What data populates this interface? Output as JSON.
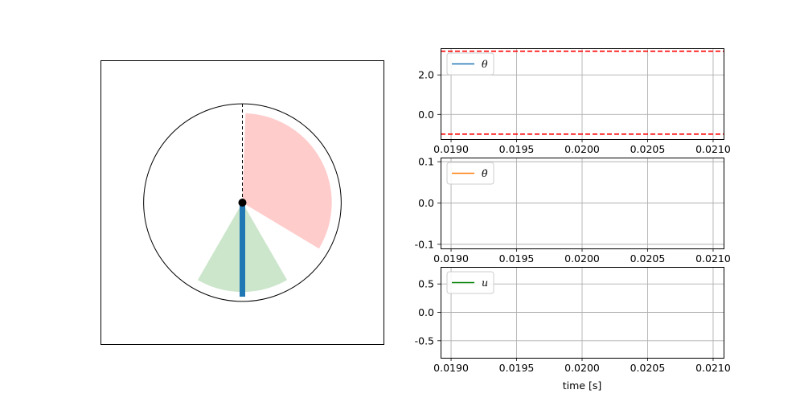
{
  "colors": {
    "theta": "#1f77b4",
    "theta_dot": "#ff7f0e",
    "u": "#008000",
    "limit_line": "#ff0000",
    "red_sector": "#ffcccc",
    "green_sector": "#cce6cc",
    "pendulum_rod": "#1f77b4",
    "pivot": "#000000",
    "grid": "#b0b0b0"
  },
  "pendulum": {
    "xlim": [
      -1.5,
      1.5
    ],
    "ylim": [
      -1.5,
      1.5
    ],
    "circle_radius": 1.05,
    "rod_length": 1.0,
    "rod_angle_deg": 0,
    "red_sector_deg": [
      330,
      360
    ],
    "green_sector_deg": [
      -30,
      30
    ],
    "ticks": false
  },
  "chart_data": [
    {
      "type": "line",
      "x": [],
      "series": [
        {
          "name": "θ",
          "values": []
        }
      ],
      "legend_label": "θ",
      "legend_location": "upper-left",
      "xlim": [
        0.01892,
        0.02108
      ],
      "ylim": [
        -1.25,
        3.35
      ],
      "hlines": [
        -1.0,
        3.2
      ],
      "xticks": [
        0.019,
        0.0195,
        0.02,
        0.0205,
        0.021
      ],
      "xtick_labels": [
        "0.0190",
        "0.0195",
        "0.0200",
        "0.0205",
        "0.0210"
      ],
      "yticks": [
        2.0,
        0.0
      ],
      "ytick_labels": [
        "2.0",
        "0.0"
      ],
      "grid": true,
      "xlabel": ""
    },
    {
      "type": "line",
      "x": [],
      "series": [
        {
          "name": "θ̇",
          "values": []
        }
      ],
      "legend_label": "θ̇",
      "legend_location": "upper-left",
      "xlim": [
        0.01892,
        0.02108
      ],
      "ylim": [
        -0.11,
        0.11
      ],
      "xticks": [
        0.019,
        0.0195,
        0.02,
        0.0205,
        0.021
      ],
      "xtick_labels": [
        "0.0190",
        "0.0195",
        "0.0200",
        "0.0205",
        "0.0210"
      ],
      "yticks": [
        0.1,
        0.0,
        -0.1
      ],
      "ytick_labels": [
        "0.1",
        "0.0",
        "-0.1"
      ],
      "grid": true,
      "xlabel": ""
    },
    {
      "type": "line",
      "x": [],
      "series": [
        {
          "name": "u",
          "values": []
        }
      ],
      "legend_label": "u",
      "legend_location": "upper-left",
      "xlim": [
        0.01892,
        0.02108
      ],
      "ylim": [
        -0.8,
        0.8
      ],
      "xticks": [
        0.019,
        0.0195,
        0.02,
        0.0205,
        0.021
      ],
      "xtick_labels": [
        "0.0190",
        "0.0195",
        "0.0200",
        "0.0205",
        "0.0210"
      ],
      "yticks": [
        0.5,
        0.0,
        -0.5
      ],
      "ytick_labels": [
        "0.5",
        "0.0",
        "-0.5"
      ],
      "grid": true,
      "xlabel": "time [s]"
    }
  ]
}
